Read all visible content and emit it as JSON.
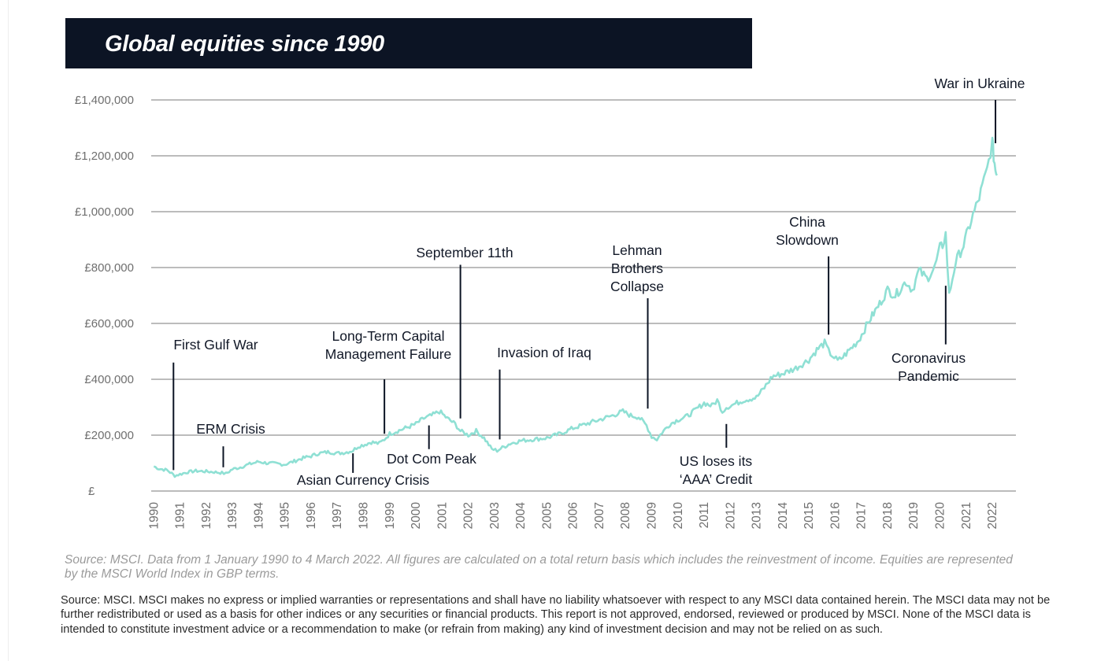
{
  "title": "Global equities since 1990",
  "colors": {
    "title_bg": "#0c1424",
    "line": "#8fe0d4",
    "grid": "#7a7a7a",
    "annotation": "#0c1424"
  },
  "chart_data": {
    "type": "line",
    "title": "Global equities since 1990",
    "xlabel": "",
    "ylabel": "",
    "ylim": [
      0,
      1400000
    ],
    "xlim": [
      1989.9,
      2022.9
    ],
    "y_ticks": [
      0,
      200000,
      400000,
      600000,
      800000,
      1000000,
      1200000,
      1400000
    ],
    "y_tick_labels": [
      "£",
      "£200,000",
      "£400,000",
      "£600,000",
      "£800,000",
      "£1,000,000",
      "£1,200,000",
      "£1,400,000"
    ],
    "x_ticks": [
      1990,
      1991,
      1992,
      1993,
      1994,
      1995,
      1996,
      1997,
      1998,
      1999,
      2000,
      2001,
      2002,
      2003,
      2004,
      2005,
      2006,
      2007,
      2008,
      2009,
      2010,
      2011,
      2012,
      2013,
      2014,
      2015,
      2016,
      2017,
      2018,
      2019,
      2020,
      2021,
      2022
    ],
    "x_tick_labels": [
      "1990",
      "1991",
      "1992",
      "1993",
      "1994",
      "1995",
      "1996",
      "1997",
      "1998",
      "1999",
      "2000",
      "2001",
      "2002",
      "2003",
      "2004",
      "2005",
      "2006",
      "2007",
      "2008",
      "2009",
      "2010",
      "2011",
      "2012",
      "2013",
      "2014",
      "2015",
      "2016",
      "2017",
      "2018",
      "2019",
      "2020",
      "2021",
      "2022"
    ],
    "grid": true,
    "series": [
      {
        "name": "MSCI World Index (GBP, total return)",
        "x": [
          1990.0,
          1990.2,
          1990.5,
          1990.8,
          1991.0,
          1991.3,
          1991.6,
          1992.0,
          1992.3,
          1992.6,
          1992.75,
          1993.0,
          1993.3,
          1993.6,
          1994.0,
          1994.3,
          1994.7,
          1995.0,
          1995.3,
          1995.7,
          1996.0,
          1996.3,
          1996.7,
          1997.0,
          1997.3,
          1997.6,
          1997.8,
          1998.0,
          1998.3,
          1998.6,
          1998.8,
          1999.0,
          1999.3,
          1999.6,
          2000.0,
          2000.3,
          2000.6,
          2000.9,
          2001.2,
          2001.5,
          2001.7,
          2002.0,
          2002.3,
          2002.6,
          2002.9,
          2003.1,
          2003.3,
          2003.6,
          2004.0,
          2004.5,
          2005.0,
          2005.5,
          2006.0,
          2006.5,
          2007.0,
          2007.5,
          2007.9,
          2008.2,
          2008.5,
          2008.8,
          2009.0,
          2009.2,
          2009.4,
          2009.7,
          2010.0,
          2010.3,
          2010.6,
          2011.0,
          2011.3,
          2011.5,
          2011.7,
          2011.85,
          2012.0,
          2012.5,
          2013.0,
          2013.3,
          2013.6,
          2014.0,
          2014.5,
          2015.0,
          2015.3,
          2015.6,
          2015.75,
          2015.9,
          2016.1,
          2016.3,
          2016.6,
          2016.9,
          2017.3,
          2017.7,
          2018.0,
          2018.3,
          2018.7,
          2018.95,
          2019.2,
          2019.5,
          2019.8,
          2020.0,
          2020.1,
          2020.22,
          2020.35,
          2020.6,
          2020.9,
          2021.2,
          2021.5,
          2021.8,
          2022.0,
          2022.05,
          2022.12,
          2022.18
        ],
        "values": [
          88000,
          80000,
          75000,
          55000,
          60000,
          68000,
          72000,
          70000,
          68000,
          65000,
          62000,
          78000,
          85000,
          95000,
          105000,
          100000,
          98000,
          95000,
          105000,
          118000,
          125000,
          135000,
          140000,
          135000,
          138000,
          145000,
          160000,
          165000,
          175000,
          170000,
          185000,
          205000,
          215000,
          225000,
          240000,
          260000,
          270000,
          285000,
          260000,
          240000,
          215000,
          200000,
          215000,
          190000,
          150000,
          145000,
          155000,
          170000,
          180000,
          185000,
          190000,
          205000,
          225000,
          240000,
          255000,
          270000,
          285000,
          270000,
          265000,
          235000,
          195000,
          185000,
          210000,
          240000,
          255000,
          265000,
          285000,
          315000,
          305000,
          325000,
          285000,
          300000,
          305000,
          325000,
          335000,
          370000,
          410000,
          420000,
          440000,
          470000,
          505000,
          530000,
          500000,
          485000,
          465000,
          480000,
          510000,
          540000,
          610000,
          670000,
          720000,
          700000,
          750000,
          720000,
          790000,
          760000,
          800000,
          870000,
          880000,
          920000,
          700000,
          820000,
          880000,
          970000,
          1050000,
          1150000,
          1250000,
          1200000,
          1150000,
          1130000
        ]
      }
    ],
    "annotations": [
      {
        "label": [
          "First Gulf War"
        ],
        "x": 1990.75,
        "y_from": 75000,
        "y_to": 460000
      },
      {
        "label": [
          "ERM Crisis"
        ],
        "x": 1992.65,
        "y_from": 85000,
        "y_to": 160000
      },
      {
        "label": [
          "Asian Currency Crisis"
        ],
        "x": 1997.6,
        "y_from": 65000,
        "y_to": 135000
      },
      {
        "label": [
          "Long-Term Capital",
          "Management Failure"
        ],
        "x": 1998.8,
        "y_from": 400000,
        "y_to": 205000
      },
      {
        "label": [
          "Dot Com Peak"
        ],
        "x": 2000.5,
        "y_from": 150000,
        "y_to": 235000
      },
      {
        "label": [
          "September 11th"
        ],
        "x": 2001.7,
        "y_from": 810000,
        "y_to": 260000
      },
      {
        "label": [
          "Invasion of Iraq"
        ],
        "x": 2003.2,
        "y_from": 435000,
        "y_to": 185000
      },
      {
        "label": [
          "Lehman",
          "Brothers",
          "Collapse"
        ],
        "x": 2008.85,
        "y_from": 690000,
        "y_to": 295000
      },
      {
        "label": [
          "US loses its",
          "‘AAA’ Credit"
        ],
        "x": 2011.85,
        "y_from": 155000,
        "y_to": 240000
      },
      {
        "label": [
          "China",
          "Slowdown"
        ],
        "x": 2015.75,
        "y_from": 840000,
        "y_to": 560000
      },
      {
        "label": [
          "Coronavirus",
          "Pandemic"
        ],
        "x": 2020.22,
        "y_from": 525000,
        "y_to": 735000
      },
      {
        "label": [
          "War in Ukraine"
        ],
        "x": 2022.12,
        "y_from": 1400000,
        "y_to": 1245000
      }
    ]
  },
  "source_note": "Source: MSCI. Data from 1 January 1990 to 4 March 2022. All figures are calculated on a total return basis which includes the reinvestment of income. Equities are represented by the MSCI World Index in GBP terms.",
  "disclaimer": "Source: MSCI. MSCI makes no express or implied warranties or representations and shall have no liability whatsoever with respect to any MSCI data contained herein. The MSCI data may not be further redistributed or used as a basis for other indices or any securities or financial products. This report is not approved, endorsed, reviewed or produced by MSCI. None of the MSCI data is intended to constitute investment advice or a recommendation to make (or refrain from making) any kind of investment decision and may not be relied on as such."
}
